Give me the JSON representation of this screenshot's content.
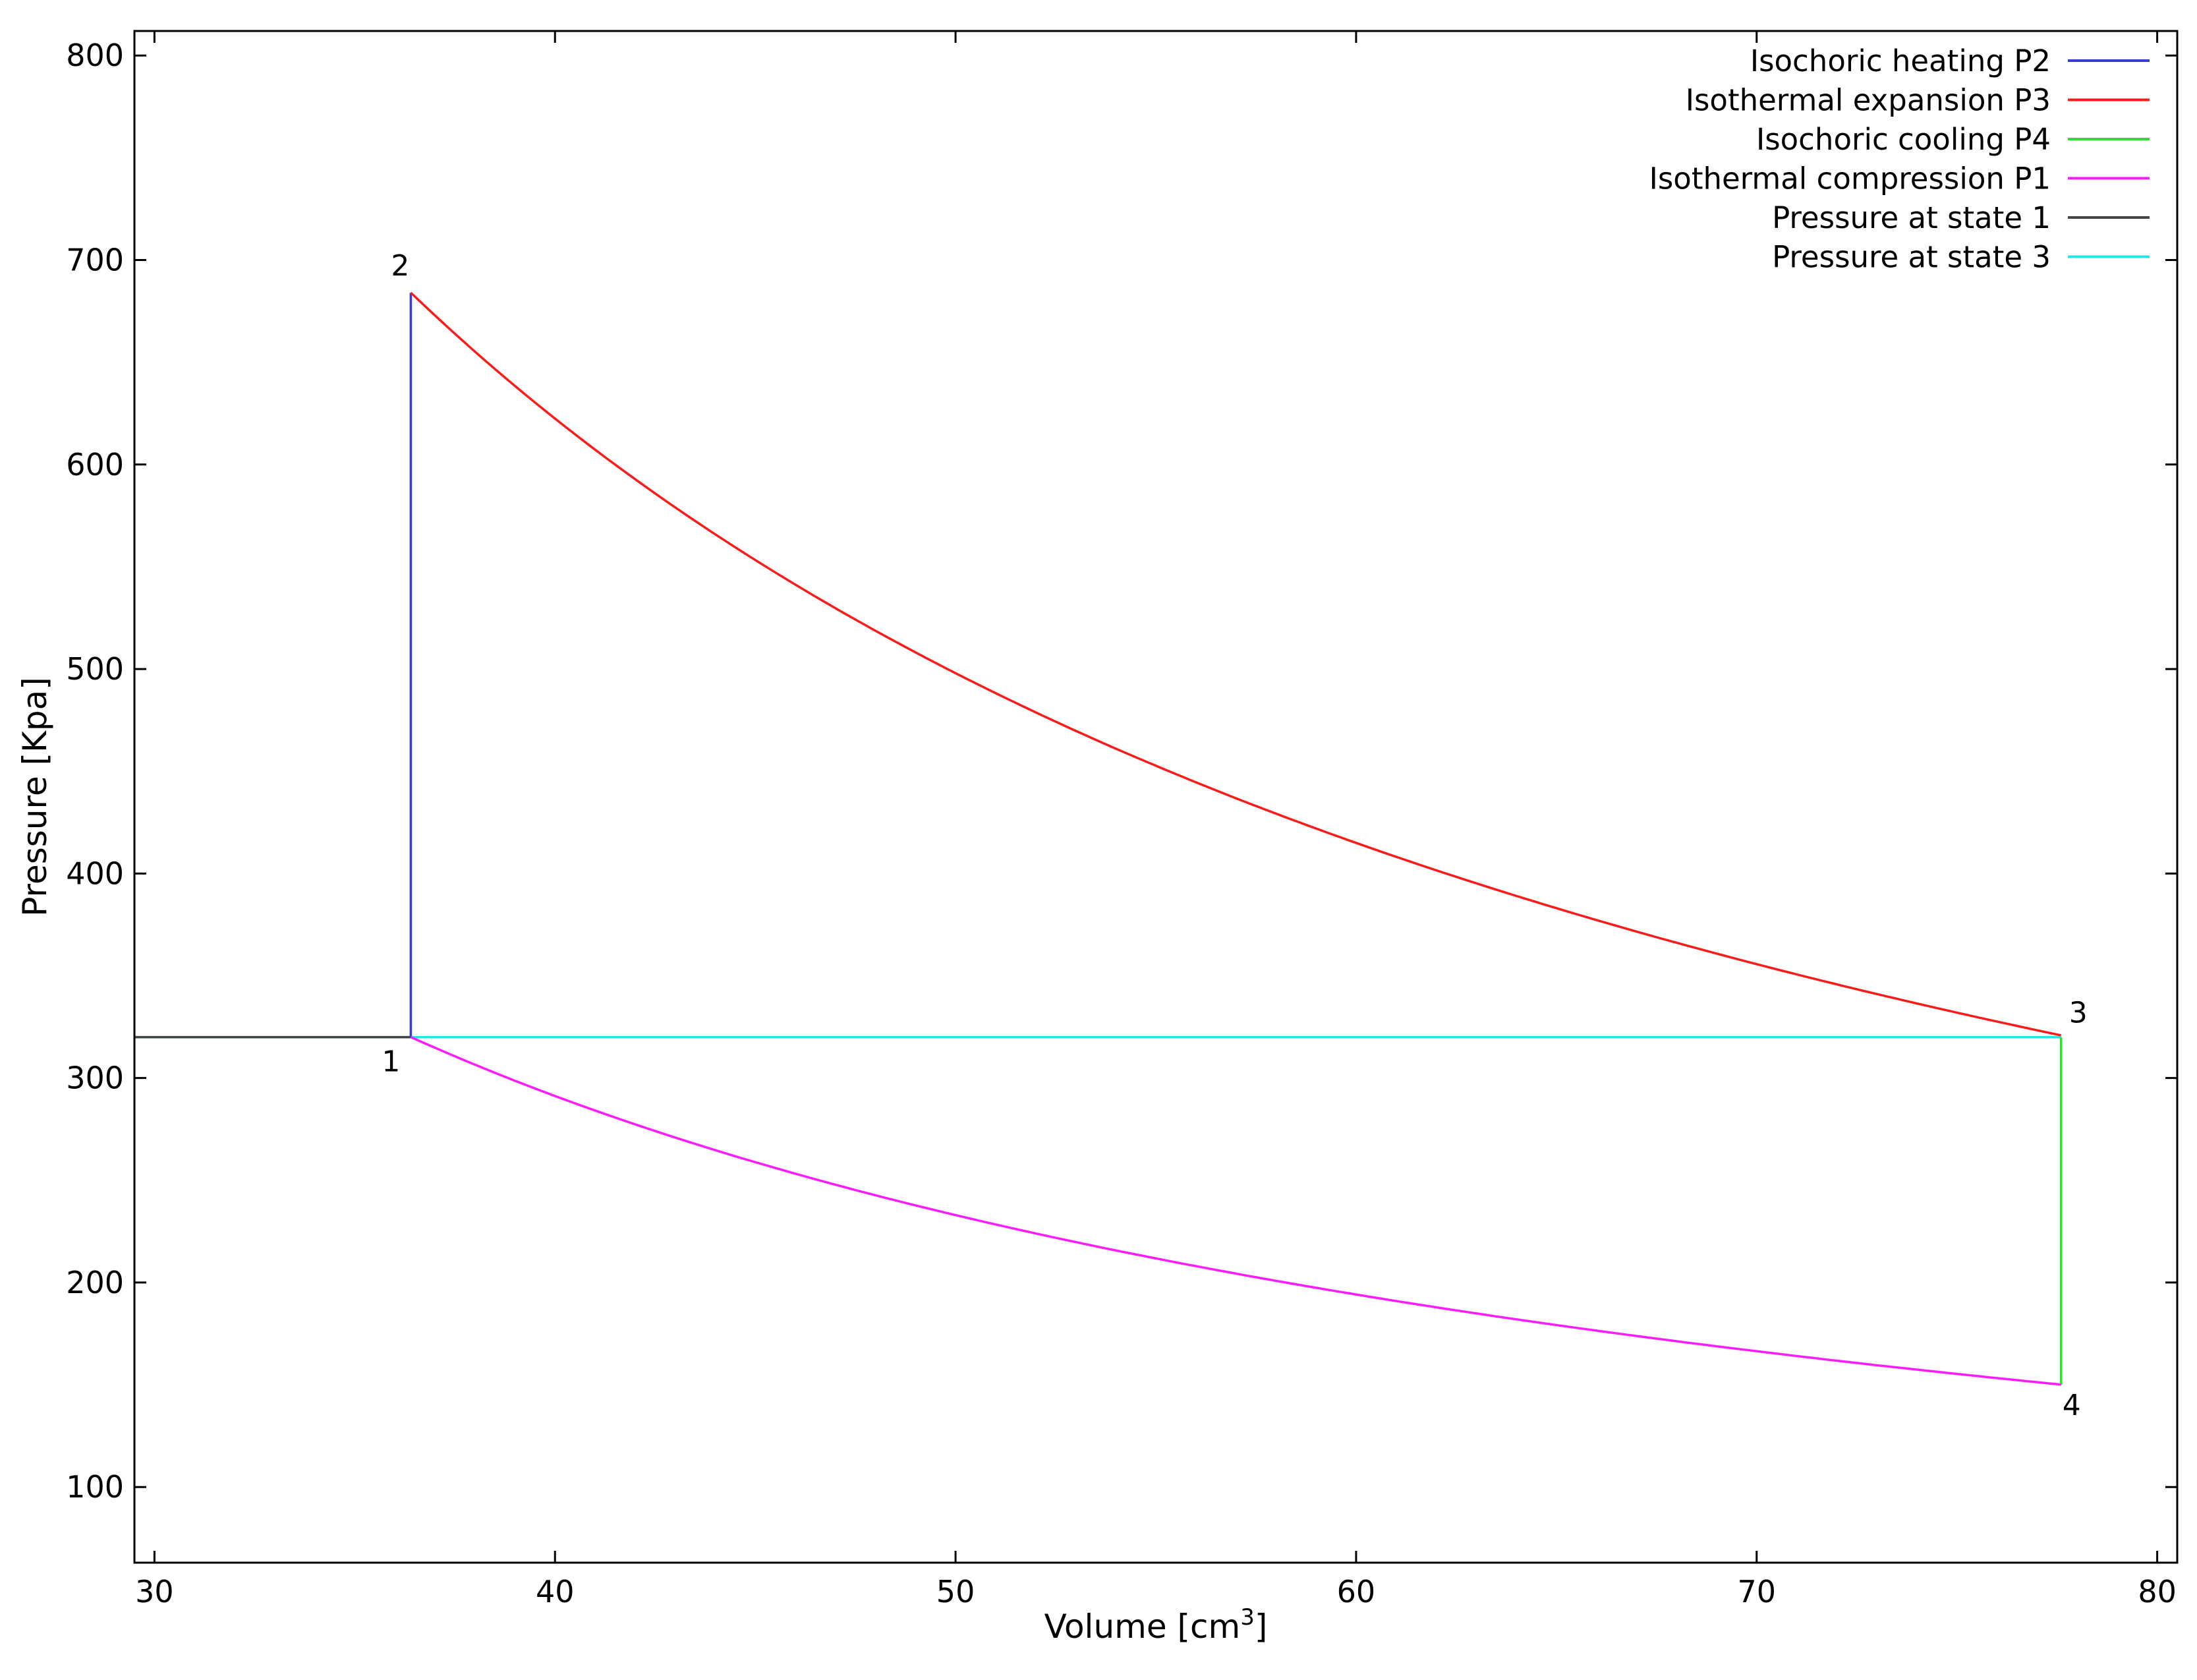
{
  "chart_data": {
    "type": "line",
    "title": "",
    "xlabel": "Volume [cm",
    "xlabel_sup": "3",
    "xlabel_close": "]",
    "ylabel": "Pressure [Kpa]",
    "xlim": [
      29.5,
      80.5
    ],
    "ylim": [
      63,
      812
    ],
    "xticks": [
      30,
      40,
      50,
      60,
      70,
      80
    ],
    "yticks": [
      100,
      200,
      300,
      400,
      500,
      600,
      700,
      800
    ],
    "grid": false,
    "legend_position": "top-right",
    "series": [
      {
        "name": "Isochoric heating P2",
        "color": "#3a3acf",
        "kind": "segment",
        "points": [
          [
            36.4,
            320
          ],
          [
            36.4,
            684
          ]
        ]
      },
      {
        "name": "Isothermal expansion P3",
        "color": "#ff1a1a",
        "kind": "isotherm",
        "x_start": 36.4,
        "x_end": 77.6,
        "pv_constant": 24898
      },
      {
        "name": "Isochoric cooling P4",
        "color": "#33dd33",
        "kind": "segment",
        "points": [
          [
            77.6,
            320
          ],
          [
            77.6,
            150
          ]
        ]
      },
      {
        "name": "Isothermal compression P1",
        "color": "#ff1aff",
        "kind": "isotherm",
        "x_start": 36.4,
        "x_end": 77.6,
        "pv_constant": 11648
      },
      {
        "name": "Pressure at state 1",
        "color": "#444444",
        "kind": "segment",
        "points": [
          [
            29.5,
            320
          ],
          [
            36.4,
            320
          ]
        ]
      },
      {
        "name": "Pressure at state 3",
        "color": "#22e6e6",
        "kind": "segment",
        "points": [
          [
            29.5,
            320
          ],
          [
            77.6,
            320
          ]
        ]
      }
    ],
    "state_labels": [
      {
        "text": "1",
        "x": 36.4,
        "y": 320,
        "anchor": "below-left"
      },
      {
        "text": "2",
        "x": 36.4,
        "y": 684,
        "anchor": "above-left"
      },
      {
        "text": "3",
        "x": 77.6,
        "y": 320,
        "anchor": "above-right"
      },
      {
        "text": "4",
        "x": 77.6,
        "y": 150,
        "anchor": "below-right"
      }
    ]
  }
}
